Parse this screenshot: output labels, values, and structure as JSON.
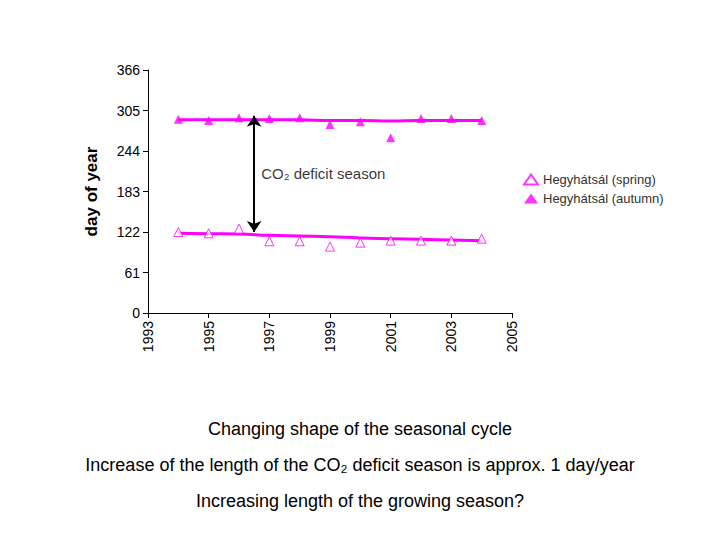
{
  "chart_data": {
    "type": "scatter",
    "ylabel": "day of year",
    "xlim": [
      1993,
      2005
    ],
    "xticks": [
      1993,
      1995,
      1997,
      1999,
      2001,
      2003,
      2005
    ],
    "ylim": [
      0,
      366
    ],
    "yticks": [
      0,
      61,
      122,
      183,
      244,
      305,
      366
    ],
    "grid": false,
    "legend": "right",
    "x": [
      1994,
      1995,
      1996,
      1997,
      1998,
      1999,
      2000,
      2001,
      2002,
      2003,
      2004
    ],
    "series": [
      {
        "name": "Hegyhátsál (spring)",
        "color": "#ff00ff",
        "marker": "triangle-open",
        "values": [
          122,
          120,
          127,
          108,
          108,
          100,
          106,
          109,
          109,
          109,
          112
        ],
        "trend": [
          120,
          119.5,
          119,
          117,
          116,
          115,
          113,
          112,
          111,
          110,
          109
        ]
      },
      {
        "name": "Hegyhátsál (autumn)",
        "color": "#ff00ff",
        "marker": "triangle",
        "values": [
          292,
          290,
          294,
          293,
          294,
          284,
          288,
          264,
          293,
          293,
          290
        ],
        "trend": [
          291,
          291,
          291,
          291,
          291,
          290,
          290,
          289,
          290,
          290,
          290
        ]
      }
    ],
    "annotation": {
      "text": "CO₂ deficit season",
      "x": 1996.5,
      "y_start": 122,
      "y_end": 297
    },
    "captions": [
      "Changing shape of the seasonal cycle",
      "Increase of the length of the CO₂ deficit season is approx. 1 day/year",
      "Increasing length of the growing season?"
    ]
  }
}
